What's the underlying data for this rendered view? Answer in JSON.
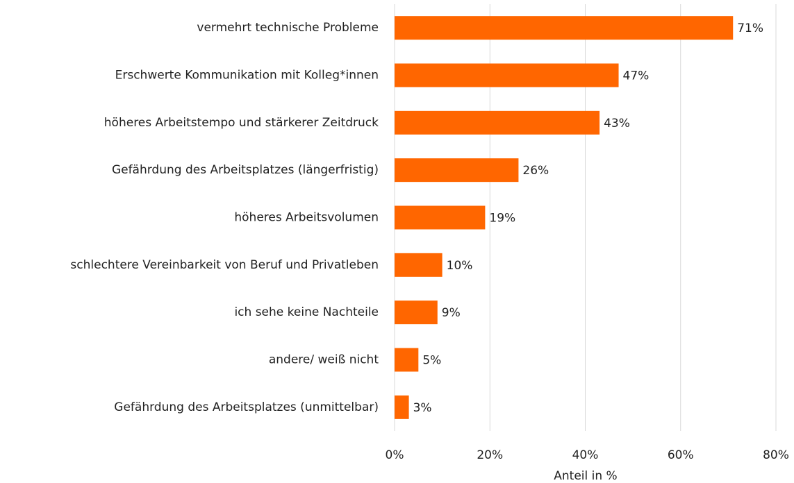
{
  "chart_data": {
    "type": "bar",
    "orientation": "horizontal",
    "x_label": "Anteil in %",
    "categories": [
      "vermehrt technische Probleme",
      "Erschwerte Kommunikation mit Kolleg*innen",
      "höheres Arbeitstempo und stärkerer Zeitdruck",
      "Gefährdung des Arbeitsplatzes (längerfristig)",
      "höheres Arbeitsvolumen",
      "schlechtere Vereinbarkeit von Beruf und Privatleben",
      "ich sehe keine Nachteile",
      "andere/ weiß nicht",
      "Gefährdung des Arbeitsplatzes (unmittelbar)"
    ],
    "values": [
      71,
      47,
      43,
      26,
      19,
      10,
      9,
      5,
      3
    ],
    "value_labels": [
      "71%",
      "47%",
      "43%",
      "26%",
      "19%",
      "10%",
      "9%",
      "5%",
      "3%"
    ],
    "color": "#ff6600",
    "xlim": [
      0,
      80
    ],
    "xticks": [
      {
        "value": 0,
        "label": "0%"
      },
      {
        "value": 20,
        "label": "20%"
      },
      {
        "value": 40,
        "label": "40%"
      },
      {
        "value": 60,
        "label": "60%"
      },
      {
        "value": 80,
        "label": "80%"
      }
    ],
    "grid": true
  }
}
